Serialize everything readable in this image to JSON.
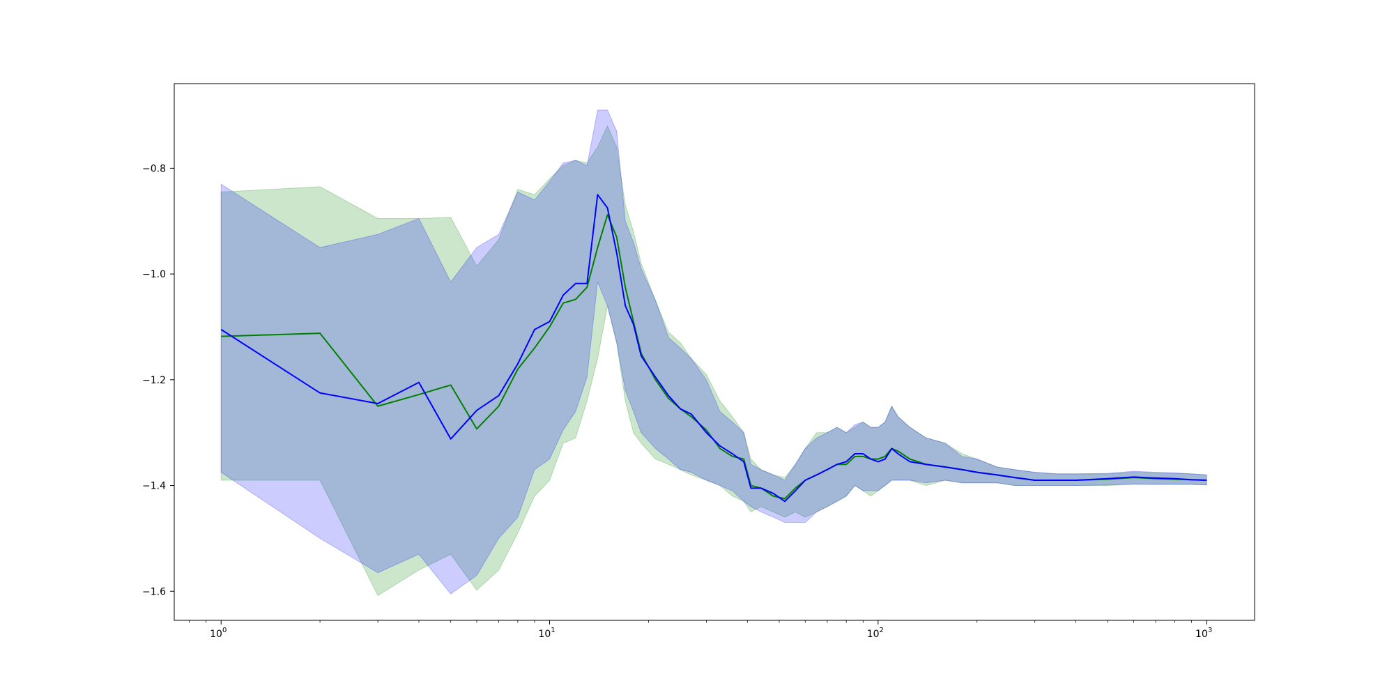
{
  "chart_data": {
    "type": "line",
    "title": "",
    "xlabel": "",
    "ylabel": "",
    "xscale": "log",
    "xlim": [
      0.72,
      1400
    ],
    "ylim": [
      -1.655,
      -0.64
    ],
    "grid": false,
    "legend": "none",
    "x_ticks": [
      {
        "value": 1,
        "base": "10",
        "exp": "0"
      },
      {
        "value": 10,
        "base": "10",
        "exp": "1"
      },
      {
        "value": 100,
        "base": "10",
        "exp": "2"
      },
      {
        "value": 1000,
        "base": "10",
        "exp": "3"
      }
    ],
    "y_ticks": [
      {
        "value": -1.6,
        "label": "−1.6"
      },
      {
        "value": -1.4,
        "label": "−1.4"
      },
      {
        "value": -1.2,
        "label": "−1.2"
      },
      {
        "value": -1.0,
        "label": "−1.0"
      },
      {
        "value": -0.8,
        "label": "−0.8"
      }
    ],
    "series": [
      {
        "color": "#008000",
        "band_color": "#008000",
        "band_opacity": 0.2,
        "points": [
          [
            1,
            -1.118,
            -1.39,
            -0.845
          ],
          [
            2,
            -1.112,
            -1.39,
            -0.835
          ],
          [
            3,
            -1.25,
            -1.608,
            -0.895
          ],
          [
            4,
            -1.228,
            -1.56,
            -0.895
          ],
          [
            5,
            -1.21,
            -1.53,
            -0.893
          ],
          [
            6,
            -1.293,
            -1.598,
            -0.985
          ],
          [
            7,
            -1.25,
            -1.56,
            -0.935
          ],
          [
            8,
            -1.18,
            -1.49,
            -0.84
          ],
          [
            9,
            -1.14,
            -1.42,
            -0.85
          ],
          [
            10,
            -1.1,
            -1.39,
            -0.82
          ],
          [
            11,
            -1.055,
            -1.32,
            -0.795
          ],
          [
            12,
            -1.048,
            -1.31,
            -0.785
          ],
          [
            13,
            -1.025,
            -1.24,
            -0.79
          ],
          [
            14,
            -0.95,
            -1.16,
            -0.76
          ],
          [
            15,
            -0.888,
            -1.06,
            -0.72
          ],
          [
            16,
            -0.93,
            -1.13,
            -0.76
          ],
          [
            17,
            -1.025,
            -1.24,
            -0.87
          ],
          [
            18,
            -1.09,
            -1.3,
            -0.92
          ],
          [
            19,
            -1.15,
            -1.32,
            -0.98
          ],
          [
            21,
            -1.2,
            -1.35,
            -1.05
          ],
          [
            23,
            -1.235,
            -1.36,
            -1.11
          ],
          [
            25,
            -1.255,
            -1.37,
            -1.13
          ],
          [
            27,
            -1.27,
            -1.38,
            -1.16
          ],
          [
            30,
            -1.295,
            -1.39,
            -1.19
          ],
          [
            33,
            -1.33,
            -1.4,
            -1.24
          ],
          [
            36,
            -1.345,
            -1.42,
            -1.27
          ],
          [
            39,
            -1.35,
            -1.43,
            -1.3
          ],
          [
            41,
            -1.4,
            -1.45,
            -1.35
          ],
          [
            44,
            -1.405,
            -1.44,
            -1.37
          ],
          [
            48,
            -1.42,
            -1.45,
            -1.38
          ],
          [
            52,
            -1.425,
            -1.46,
            -1.385
          ],
          [
            56,
            -1.405,
            -1.45,
            -1.36
          ],
          [
            60,
            -1.39,
            -1.46,
            -1.33
          ],
          [
            65,
            -1.38,
            -1.45,
            -1.3
          ],
          [
            70,
            -1.37,
            -1.44,
            -1.3
          ],
          [
            75,
            -1.36,
            -1.43,
            -1.29
          ],
          [
            80,
            -1.36,
            -1.42,
            -1.3
          ],
          [
            85,
            -1.345,
            -1.4,
            -1.29
          ],
          [
            90,
            -1.345,
            -1.41,
            -1.28
          ],
          [
            95,
            -1.35,
            -1.42,
            -1.29
          ],
          [
            100,
            -1.35,
            -1.41,
            -1.29
          ],
          [
            105,
            -1.345,
            -1.4,
            -1.28
          ],
          [
            110,
            -1.33,
            -1.39,
            -1.25
          ],
          [
            115,
            -1.335,
            -1.39,
            -1.27
          ],
          [
            125,
            -1.35,
            -1.39,
            -1.29
          ],
          [
            140,
            -1.36,
            -1.4,
            -1.31
          ],
          [
            160,
            -1.365,
            -1.39,
            -1.32
          ],
          [
            180,
            -1.37,
            -1.395,
            -1.34
          ],
          [
            200,
            -1.375,
            -1.395,
            -1.35
          ],
          [
            230,
            -1.38,
            -1.395,
            -1.365
          ],
          [
            260,
            -1.385,
            -1.4,
            -1.37
          ],
          [
            300,
            -1.39,
            -1.4,
            -1.375
          ],
          [
            350,
            -1.39,
            -1.4,
            -1.378
          ],
          [
            400,
            -1.39,
            -1.4,
            -1.378
          ],
          [
            500,
            -1.388,
            -1.4,
            -1.378
          ],
          [
            600,
            -1.385,
            -1.398,
            -1.375
          ],
          [
            700,
            -1.387,
            -1.398,
            -1.376
          ],
          [
            800,
            -1.388,
            -1.398,
            -1.377
          ],
          [
            900,
            -1.389,
            -1.398,
            -1.378
          ],
          [
            1000,
            -1.39,
            -1.399,
            -1.38
          ]
        ]
      },
      {
        "color": "#0000ff",
        "band_color": "#0000ff",
        "band_opacity": 0.2,
        "points": [
          [
            1,
            -1.105,
            -1.375,
            -0.83
          ],
          [
            2,
            -1.225,
            -1.5,
            -0.95
          ],
          [
            3,
            -1.245,
            -1.565,
            -0.925
          ],
          [
            4,
            -1.205,
            -1.53,
            -0.895
          ],
          [
            5,
            -1.312,
            -1.605,
            -1.015
          ],
          [
            6,
            -1.258,
            -1.57,
            -0.95
          ],
          [
            7,
            -1.23,
            -1.5,
            -0.925
          ],
          [
            8,
            -1.17,
            -1.46,
            -0.845
          ],
          [
            9,
            -1.105,
            -1.37,
            -0.86
          ],
          [
            10,
            -1.09,
            -1.35,
            -0.825
          ],
          [
            11,
            -1.04,
            -1.295,
            -0.79
          ],
          [
            12,
            -1.018,
            -1.26,
            -0.785
          ],
          [
            13,
            -1.018,
            -1.195,
            -0.795
          ],
          [
            14,
            -0.85,
            -1.015,
            -0.69
          ],
          [
            15,
            -0.875,
            -1.06,
            -0.69
          ],
          [
            16,
            -0.96,
            -1.13,
            -0.73
          ],
          [
            17,
            -1.06,
            -1.22,
            -0.9
          ],
          [
            18,
            -1.095,
            -1.26,
            -0.94
          ],
          [
            19,
            -1.155,
            -1.3,
            -0.99
          ],
          [
            21,
            -1.195,
            -1.33,
            -1.05
          ],
          [
            23,
            -1.23,
            -1.35,
            -1.12
          ],
          [
            25,
            -1.255,
            -1.37,
            -1.14
          ],
          [
            27,
            -1.265,
            -1.375,
            -1.16
          ],
          [
            30,
            -1.3,
            -1.39,
            -1.2
          ],
          [
            33,
            -1.325,
            -1.4,
            -1.26
          ],
          [
            36,
            -1.34,
            -1.41,
            -1.28
          ],
          [
            39,
            -1.355,
            -1.43,
            -1.3
          ],
          [
            41,
            -1.405,
            -1.44,
            -1.36
          ],
          [
            44,
            -1.405,
            -1.45,
            -1.37
          ],
          [
            48,
            -1.415,
            -1.46,
            -1.38
          ],
          [
            52,
            -1.43,
            -1.47,
            -1.39
          ],
          [
            56,
            -1.41,
            -1.47,
            -1.36
          ],
          [
            60,
            -1.39,
            -1.47,
            -1.33
          ],
          [
            65,
            -1.38,
            -1.45,
            -1.31
          ],
          [
            70,
            -1.37,
            -1.44,
            -1.3
          ],
          [
            75,
            -1.36,
            -1.43,
            -1.29
          ],
          [
            80,
            -1.355,
            -1.42,
            -1.3
          ],
          [
            85,
            -1.34,
            -1.4,
            -1.285
          ],
          [
            90,
            -1.34,
            -1.41,
            -1.28
          ],
          [
            95,
            -1.35,
            -1.41,
            -1.29
          ],
          [
            100,
            -1.355,
            -1.41,
            -1.29
          ],
          [
            105,
            -1.35,
            -1.4,
            -1.28
          ],
          [
            110,
            -1.33,
            -1.39,
            -1.25
          ],
          [
            115,
            -1.34,
            -1.39,
            -1.27
          ],
          [
            125,
            -1.355,
            -1.39,
            -1.29
          ],
          [
            140,
            -1.36,
            -1.395,
            -1.31
          ],
          [
            160,
            -1.365,
            -1.39,
            -1.32
          ],
          [
            180,
            -1.37,
            -1.395,
            -1.345
          ],
          [
            200,
            -1.375,
            -1.395,
            -1.35
          ],
          [
            230,
            -1.38,
            -1.395,
            -1.365
          ],
          [
            260,
            -1.385,
            -1.4,
            -1.37
          ],
          [
            300,
            -1.39,
            -1.4,
            -1.375
          ],
          [
            350,
            -1.39,
            -1.4,
            -1.378
          ],
          [
            400,
            -1.39,
            -1.4,
            -1.378
          ],
          [
            500,
            -1.387,
            -1.399,
            -1.377
          ],
          [
            600,
            -1.384,
            -1.397,
            -1.373
          ],
          [
            700,
            -1.386,
            -1.398,
            -1.375
          ],
          [
            800,
            -1.387,
            -1.398,
            -1.376
          ],
          [
            900,
            -1.389,
            -1.398,
            -1.378
          ],
          [
            1000,
            -1.39,
            -1.399,
            -1.38
          ]
        ]
      }
    ]
  }
}
